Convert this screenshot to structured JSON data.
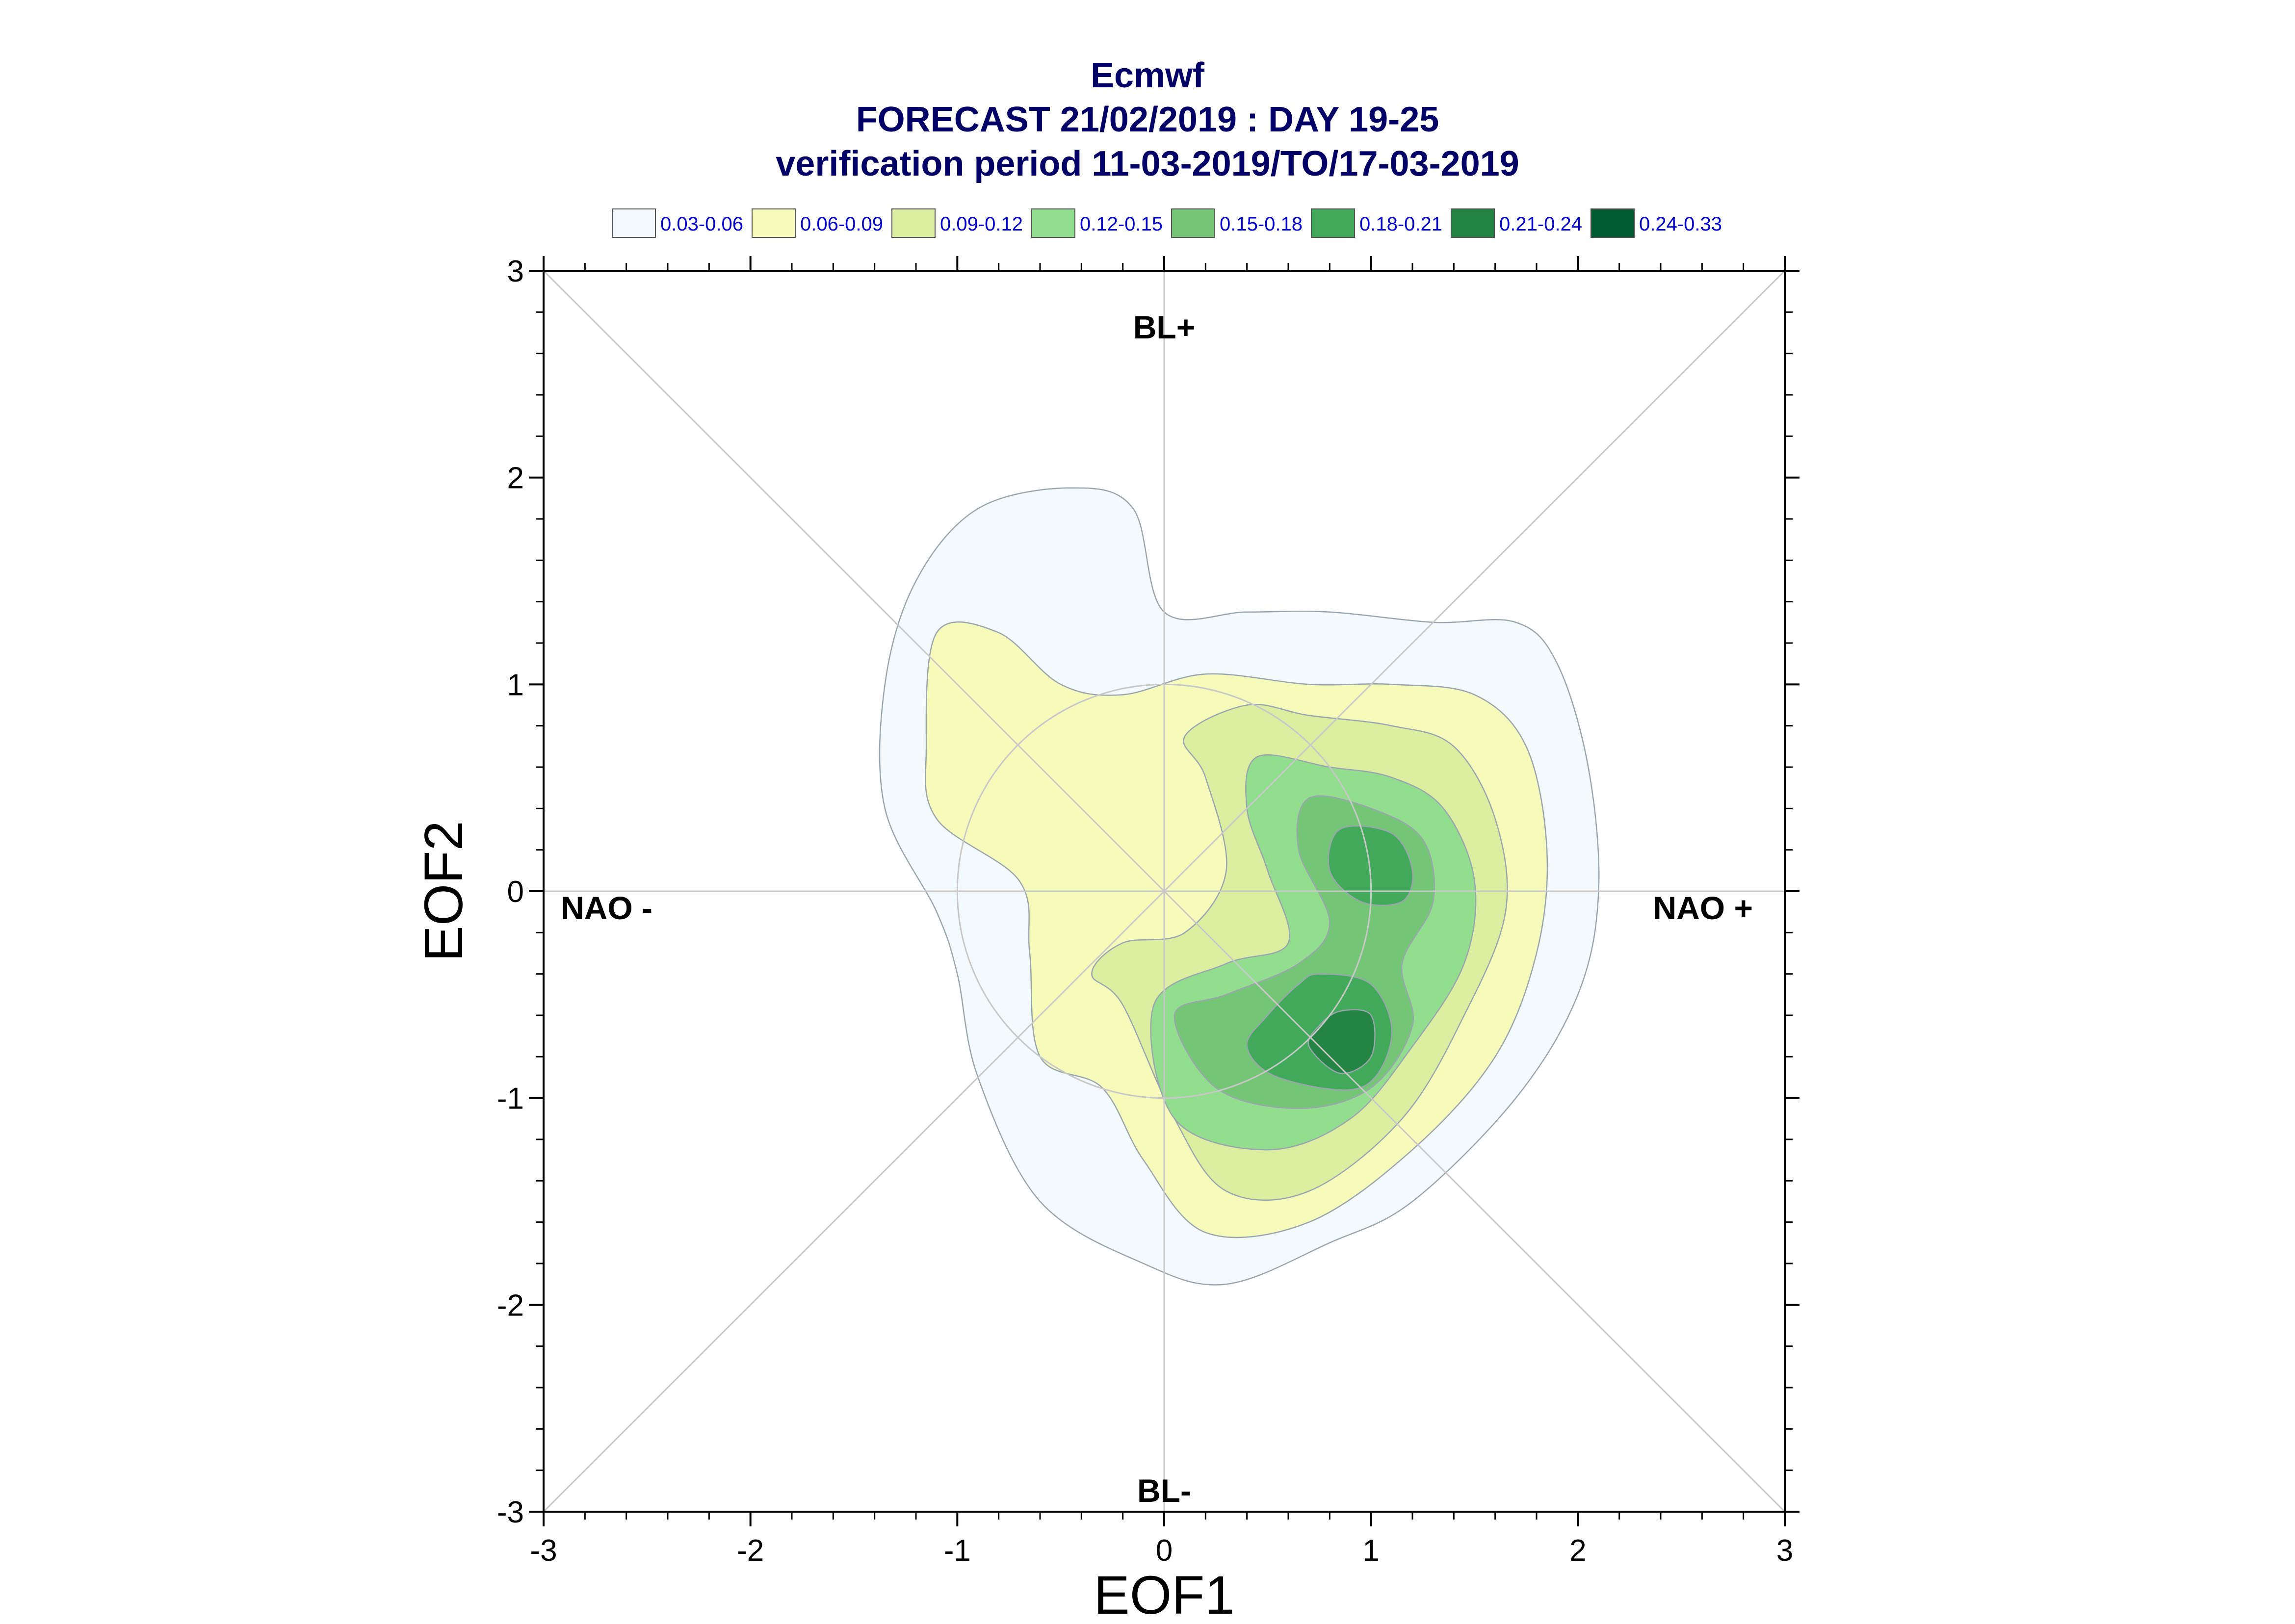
{
  "title": {
    "line1": "Ecmwf",
    "line2": "FORECAST 21/02/2019 : DAY 19-25",
    "line3": "verification period 11-03-2019/TO/17-03-2019"
  },
  "legend": [
    {
      "label": "0.03-0.06",
      "color": "#f4f9fd"
    },
    {
      "label": "0.06-0.09",
      "color": "#f6fbbb"
    },
    {
      "label": "0.09-0.12",
      "color": "#dcefa1"
    },
    {
      "label": "0.12-0.15",
      "color": "#92de8e"
    },
    {
      "label": "0.15-0.18",
      "color": "#74c575"
    },
    {
      "label": "0.18-0.21",
      "color": "#41aa5a"
    },
    {
      "label": "0.21-0.24",
      "color": "#238443"
    },
    {
      "label": "0.24-0.33",
      "color": "#005a32"
    }
  ],
  "chart_data": {
    "type": "contour",
    "xlabel": "EOF1",
    "ylabel": "EOF2",
    "xlim": [
      -3,
      3
    ],
    "ylim": [
      -3,
      3
    ],
    "x_ticks": [
      "-3",
      "-2",
      "-1",
      "0",
      "1",
      "2",
      "3"
    ],
    "y_ticks": [
      "-3",
      "-2",
      "-1",
      "0",
      "1",
      "2",
      "3"
    ],
    "unit_circle_radius": 1,
    "regime_labels": {
      "top": "BL+",
      "bottom": "BL-",
      "left": "NAO -",
      "right": "NAO +"
    },
    "levels": [
      {
        "range": "0.03-0.06",
        "polygons": [
          [
            [
              -0.45,
              1.95
            ],
            [
              -0.15,
              1.85
            ],
            [
              0,
              1.35
            ],
            [
              0.4,
              1.35
            ],
            [
              0.8,
              1.35
            ],
            [
              1.3,
              1.3
            ],
            [
              1.7,
              1.3
            ],
            [
              1.9,
              1.1
            ],
            [
              2.05,
              0.6
            ],
            [
              2.1,
              0
            ],
            [
              2.0,
              -0.5
            ],
            [
              1.7,
              -1.0
            ],
            [
              1.2,
              -1.5
            ],
            [
              0.8,
              -1.7
            ],
            [
              0.3,
              -1.9
            ],
            [
              -0.1,
              -1.8
            ],
            [
              -0.6,
              -1.5
            ],
            [
              -0.9,
              -0.9
            ],
            [
              -1.0,
              -0.4
            ],
            [
              -1.1,
              -0.1
            ],
            [
              -1.35,
              0.4
            ],
            [
              -1.35,
              1.0
            ],
            [
              -1.2,
              1.5
            ],
            [
              -0.9,
              1.85
            ]
          ]
        ]
      },
      {
        "range": "0.06-0.09",
        "polygons": [
          [
            [
              -1.1,
              1.25
            ],
            [
              -0.8,
              1.25
            ],
            [
              -0.5,
              1.0
            ],
            [
              -0.2,
              0.95
            ],
            [
              0.2,
              1.05
            ],
            [
              0.7,
              1.0
            ],
            [
              1.1,
              1.0
            ],
            [
              1.5,
              0.95
            ],
            [
              1.75,
              0.7
            ],
            [
              1.85,
              0.2
            ],
            [
              1.8,
              -0.3
            ],
            [
              1.6,
              -0.8
            ],
            [
              1.2,
              -1.25
            ],
            [
              0.7,
              -1.6
            ],
            [
              0.2,
              -1.65
            ],
            [
              -0.1,
              -1.3
            ],
            [
              -0.3,
              -0.95
            ],
            [
              -0.6,
              -0.8
            ],
            [
              -0.65,
              -0.3
            ],
            [
              -0.7,
              0.05
            ],
            [
              -1.1,
              0.35
            ],
            [
              -1.15,
              0.7
            ]
          ]
        ]
      },
      {
        "range": "0.09-0.12",
        "polygons": [
          [
            [
              0.1,
              0.75
            ],
            [
              0.4,
              0.9
            ],
            [
              0.7,
              0.85
            ],
            [
              1.1,
              0.8
            ],
            [
              1.4,
              0.7
            ],
            [
              1.6,
              0.35
            ],
            [
              1.65,
              -0.1
            ],
            [
              1.45,
              -0.6
            ],
            [
              1.15,
              -1.1
            ],
            [
              0.7,
              -1.45
            ],
            [
              0.3,
              -1.45
            ],
            [
              0.05,
              -1.1
            ],
            [
              -0.2,
              -0.55
            ],
            [
              -0.35,
              -0.4
            ],
            [
              -0.2,
              -0.25
            ],
            [
              0.1,
              -0.2
            ],
            [
              0.3,
              0.1
            ],
            [
              0.2,
              0.55
            ]
          ]
        ]
      },
      {
        "range": "0.12-0.15",
        "polygons": [
          [
            [
              0.45,
              0.65
            ],
            [
              0.8,
              0.6
            ],
            [
              1.1,
              0.55
            ],
            [
              1.35,
              0.4
            ],
            [
              1.5,
              0.05
            ],
            [
              1.45,
              -0.35
            ],
            [
              1.2,
              -0.75
            ],
            [
              0.9,
              -1.1
            ],
            [
              0.5,
              -1.25
            ],
            [
              0.05,
              -1.1
            ],
            [
              -0.05,
              -0.55
            ],
            [
              0.3,
              -0.35
            ],
            [
              0.6,
              -0.25
            ],
            [
              0.5,
              0.1
            ],
            [
              0.4,
              0.4
            ]
          ]
        ]
      },
      {
        "range": "0.15-0.18",
        "polygons": [
          [
            [
              0.7,
              0.45
            ],
            [
              1.0,
              0.4
            ],
            [
              1.25,
              0.25
            ],
            [
              1.3,
              -0.05
            ],
            [
              1.15,
              -0.35
            ],
            [
              1.2,
              -0.65
            ],
            [
              1.0,
              -0.95
            ],
            [
              0.65,
              -1.05
            ],
            [
              0.25,
              -0.95
            ],
            [
              0.05,
              -0.6
            ],
            [
              0.3,
              -0.5
            ],
            [
              0.65,
              -0.35
            ],
            [
              0.8,
              -0.15
            ],
            [
              0.65,
              0.2
            ]
          ]
        ]
      },
      {
        "range": "0.18-0.21",
        "polygons": [
          [
            [
              0.85,
              0.3
            ],
            [
              1.1,
              0.28
            ],
            [
              1.2,
              0.1
            ],
            [
              1.15,
              -0.05
            ],
            [
              0.95,
              -0.05
            ],
            [
              0.8,
              0.1
            ]
          ],
          [
            [
              0.75,
              -0.4
            ],
            [
              1.0,
              -0.45
            ],
            [
              1.1,
              -0.7
            ],
            [
              0.95,
              -0.95
            ],
            [
              0.55,
              -0.9
            ],
            [
              0.4,
              -0.75
            ],
            [
              0.5,
              -0.6
            ],
            [
              0.65,
              -0.45
            ]
          ]
        ]
      },
      {
        "range": "0.21-0.24",
        "polygons": [
          [
            [
              0.85,
              -0.58
            ],
            [
              1.0,
              -0.6
            ],
            [
              1.0,
              -0.8
            ],
            [
              0.85,
              -0.88
            ],
            [
              0.7,
              -0.75
            ],
            [
              0.75,
              -0.65
            ]
          ]
        ]
      }
    ]
  }
}
